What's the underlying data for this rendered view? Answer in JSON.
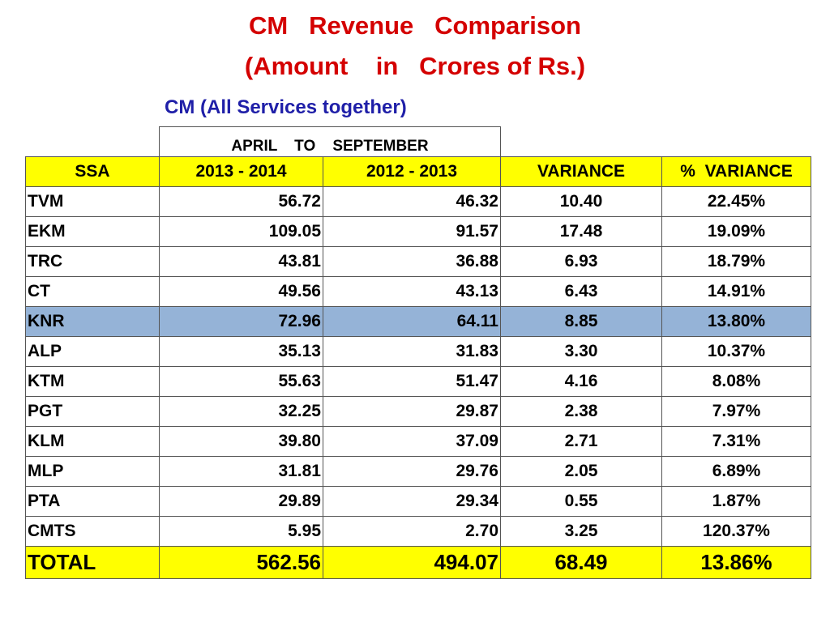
{
  "title": {
    "line1": "CM   Revenue   Comparison",
    "line2": "(Amount    in   Crores of Rs.)"
  },
  "subtitle": "CM (All Services together)",
  "period_header": "APRIL    TO    SEPTEMBER",
  "columns": [
    "SSA",
    "2013 - 2014",
    "2012 - 2013",
    "VARIANCE",
    "%  VARIANCE"
  ],
  "rows": [
    {
      "ssa": "TVM",
      "y2013": "56.72",
      "y2012": "46.32",
      "variance": "10.40",
      "pct": "22.45%"
    },
    {
      "ssa": "EKM",
      "y2013": "109.05",
      "y2012": "91.57",
      "variance": "17.48",
      "pct": "19.09%"
    },
    {
      "ssa": "TRC",
      "y2013": "43.81",
      "y2012": "36.88",
      "variance": "6.93",
      "pct": "18.79%"
    },
    {
      "ssa": "CT",
      "y2013": "49.56",
      "y2012": "43.13",
      "variance": "6.43",
      "pct": "14.91%"
    },
    {
      "ssa": "KNR",
      "y2013": "72.96",
      "y2012": "64.11",
      "variance": "8.85",
      "pct": "13.80%"
    },
    {
      "ssa": "ALP",
      "y2013": "35.13",
      "y2012": "31.83",
      "variance": "3.30",
      "pct": "10.37%"
    },
    {
      "ssa": "KTM",
      "y2013": "55.63",
      "y2012": "51.47",
      "variance": "4.16",
      "pct": "8.08%"
    },
    {
      "ssa": "PGT",
      "y2013": "32.25",
      "y2012": "29.87",
      "variance": "2.38",
      "pct": "7.97%"
    },
    {
      "ssa": "KLM",
      "y2013": "39.80",
      "y2012": "37.09",
      "variance": "2.71",
      "pct": "7.31%"
    },
    {
      "ssa": "MLP",
      "y2013": "31.81",
      "y2012": "29.76",
      "variance": "2.05",
      "pct": "6.89%"
    },
    {
      "ssa": "PTA",
      "y2013": "29.89",
      "y2012": "29.34",
      "variance": "0.55",
      "pct": "1.87%"
    },
    {
      "ssa": "CMTS",
      "y2013": "5.95",
      "y2012": "2.70",
      "variance": "3.25",
      "pct": "120.37%"
    }
  ],
  "total": {
    "ssa": "TOTAL",
    "y2013": "562.56",
    "y2012": "494.07",
    "variance": "68.49",
    "pct": "13.86%"
  },
  "colors": {
    "title": "#d40000",
    "subtitle": "#1f1fa8",
    "header_fill": "#ffff00",
    "highlight_row": "#95b3d7"
  }
}
